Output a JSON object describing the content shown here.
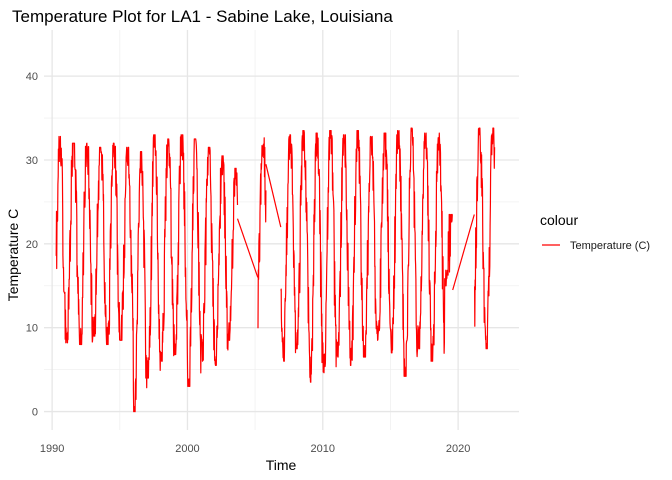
{
  "chart_data": {
    "type": "line",
    "title": "Temperature Plot for LA1 - Sabine Lake, Louisiana",
    "xlabel": "Time",
    "ylabel": "Temperature C",
    "xlim": [
      1989.4,
      2024.5
    ],
    "ylim": [
      -2.2,
      45.5
    ],
    "x_ticks": [
      1990,
      2000,
      2010,
      2020
    ],
    "y_ticks": [
      0,
      10,
      20,
      30,
      40
    ],
    "grid": true,
    "legend": {
      "title": "colour",
      "position": "right",
      "entries": [
        "Temperature (C)"
      ]
    },
    "series": [
      {
        "name": "Temperature (C)",
        "color": "#ff0000",
        "low_values": [
          7.8,
          8.2,
          8.0,
          9.0,
          8.0,
          8.5,
          0.0,
          4.0,
          6.0,
          6.8,
          3.0,
          6.0,
          5.5,
          8.5,
          8.0,
          8.5,
          8.5,
          6.0,
          7.5,
          3.5,
          4.5,
          6.5,
          5.5,
          6.5,
          8.5,
          7.0,
          4.2,
          7.5,
          6.0,
          15.0,
          7.8,
          7.5
        ],
        "high_values": [
          32.8,
          32.0,
          32.0,
          31.5,
          32.0,
          31.5,
          31.0,
          33.0,
          32.5,
          33.0,
          32.5,
          31.5,
          30.5,
          29.0,
          31.5,
          32.8,
          33.2,
          33.0,
          33.5,
          33.2,
          33.5,
          33.0,
          33.5,
          32.8,
          33.2,
          33.5,
          33.8,
          33.2,
          33.2,
          23.5,
          33.0,
          33.8
        ],
        "gaps": [
          {
            "from": 2003.7,
            "to": 2005.2,
            "values": [
              23.0,
              16.0
            ]
          },
          {
            "from": 2005.8,
            "to": 2006.9,
            "values": [
              29.5,
              22.0
            ]
          },
          {
            "from": 2019.6,
            "to": 2021.2,
            "values": [
              14.5,
              23.5
            ]
          }
        ],
        "start": 1990.3,
        "end": 2022.7,
        "missing_years": [
          2004,
          2005,
          2020
        ]
      }
    ]
  }
}
